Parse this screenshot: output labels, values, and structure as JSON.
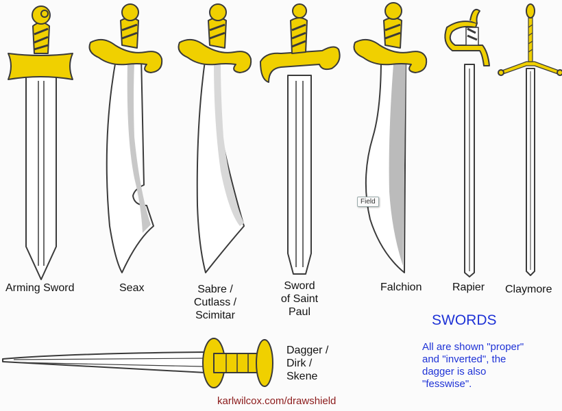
{
  "labels": {
    "arming_sword": "Arming Sword",
    "seax": "Seax",
    "sabre": [
      "Sabre /",
      "Cutlass /",
      "Scimitar"
    ],
    "sword_saint_paul": [
      "Sword",
      "of Saint",
      "Paul"
    ],
    "falchion": "Falchion",
    "rapier": "Rapier",
    "claymore": "Claymore",
    "dagger": [
      "Dagger /",
      "Dirk /",
      "Skene"
    ]
  },
  "title": "SWORDS",
  "note": [
    "All are shown \"proper\"",
    "and \"inverted\", the",
    "dagger is also",
    "\"fesswise\"."
  ],
  "credit": "karlwilcox.com/drawshield",
  "tooltip": "Field",
  "colors": {
    "gold": "#f0d000",
    "outline": "#3a3a3a",
    "blade": "#ffffff",
    "shade": "#c8c8c8",
    "title_blue": "#1e32d6",
    "credit_red": "#8b1a1a"
  }
}
